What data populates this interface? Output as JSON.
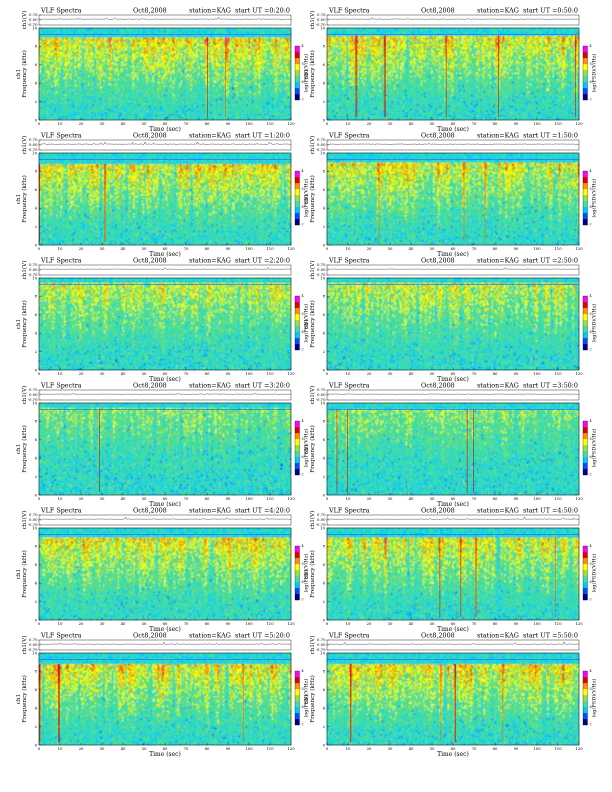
{
  "chart_data": {
    "type": "heatmap",
    "layout": {
      "rows": 6,
      "columns": 2
    },
    "common": {
      "title": "VLF Spectra",
      "date": "Oct8,2008",
      "station": "station=KAG",
      "upper_ylabel": "ch1(V)",
      "upper_ylim": [
        -0.7,
        0.7
      ],
      "upper_yticks": [
        "0.70",
        "0.00",
        "-0.70"
      ],
      "xlabel": "Time (sec)",
      "xlim": [
        0,
        120
      ],
      "xticks": [
        "0",
        "10",
        "20",
        "30",
        "40",
        "50",
        "60",
        "70",
        "80",
        "90",
        "100",
        "110",
        "120"
      ],
      "ylabel_top": "ch1",
      "ylabel": "Frequency (kHz)",
      "ylim": [
        0,
        10
      ],
      "yticks": [
        "0",
        "2",
        "4",
        "6",
        "8",
        "10"
      ],
      "colorbar_label": "log(PSD)(V/Hz)",
      "colorbar_ticks": [
        "-4",
        "-5",
        "-6",
        "-7"
      ],
      "colormap": [
        "#00008b",
        "#0050ff",
        "#00c8ff",
        "#40e0a0",
        "#9adf3c",
        "#ffff00",
        "#ff9000",
        "#e00000",
        "#ff00ff"
      ],
      "background_color": "#40d8a8",
      "band_edge_khz": 9.3
    },
    "panels": [
      {
        "start": "start UT =0:20:0",
        "intensity": 0.85,
        "cutoff_khz": 9.0,
        "density": 1.0
      },
      {
        "start": "start UT =0:50:0",
        "intensity": 0.8,
        "cutoff_khz": 9.2,
        "density": 0.95
      },
      {
        "start": "start UT =1:20:0",
        "intensity": 0.85,
        "cutoff_khz": 8.8,
        "density": 0.95
      },
      {
        "start": "start UT =1:50:0",
        "intensity": 0.8,
        "cutoff_khz": 9.0,
        "density": 0.85
      },
      {
        "start": "start UT =2:20:0",
        "intensity": 0.7,
        "cutoff_khz": 9.4,
        "density": 0.8
      },
      {
        "start": "start UT =2:50:0",
        "intensity": 0.7,
        "cutoff_khz": 9.4,
        "density": 0.8
      },
      {
        "start": "start UT =3:20:0",
        "intensity": 0.5,
        "cutoff_khz": 9.4,
        "density": 0.6
      },
      {
        "start": "start UT =3:50:0",
        "intensity": 0.5,
        "cutoff_khz": 9.3,
        "density": 0.6
      },
      {
        "start": "start UT =4:20:0",
        "intensity": 0.8,
        "cutoff_khz": 9.0,
        "density": 0.95
      },
      {
        "start": "start UT =4:50:0",
        "intensity": 0.8,
        "cutoff_khz": 9.0,
        "density": 0.95
      },
      {
        "start": "start UT =5:20:0",
        "intensity": 0.85,
        "cutoff_khz": 8.8,
        "density": 1.0
      },
      {
        "start": "start UT =5:50:0",
        "intensity": 0.85,
        "cutoff_khz": 8.8,
        "density": 1.0
      }
    ]
  }
}
